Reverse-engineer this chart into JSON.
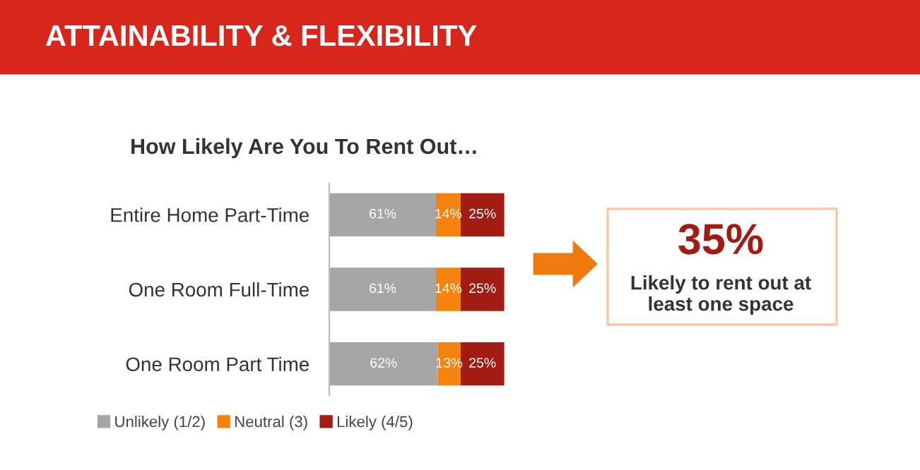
{
  "chart_data": {
    "type": "bar",
    "orientation": "horizontal",
    "stacked": true,
    "title": "ATTAINABILITY & FLEXIBILITY",
    "subtitle": "How Likely Are You To Rent Out…",
    "categories": [
      "Entire Home Part-Time",
      "One Room Full-Time",
      "One Room Part Time"
    ],
    "series": [
      {
        "name": "Unlikely (1/2)",
        "color": "#a6a6a6",
        "values": [
          61,
          61,
          62
        ],
        "value_labels": [
          "61%",
          "61%",
          "62%"
        ]
      },
      {
        "name": "Neutral (3)",
        "color": "#f7830f",
        "values": [
          14,
          14,
          13
        ],
        "value_labels": [
          "14%",
          "14%",
          "13%"
        ]
      },
      {
        "name": "Likely (4/5)",
        "color": "#a31c14",
        "values": [
          25,
          25,
          25
        ],
        "value_labels": [
          "25%",
          "25%",
          "25%"
        ]
      }
    ],
    "legend": "bottom",
    "annotations": [
      "35%",
      "Likely to rent out at least one space"
    ]
  }
}
